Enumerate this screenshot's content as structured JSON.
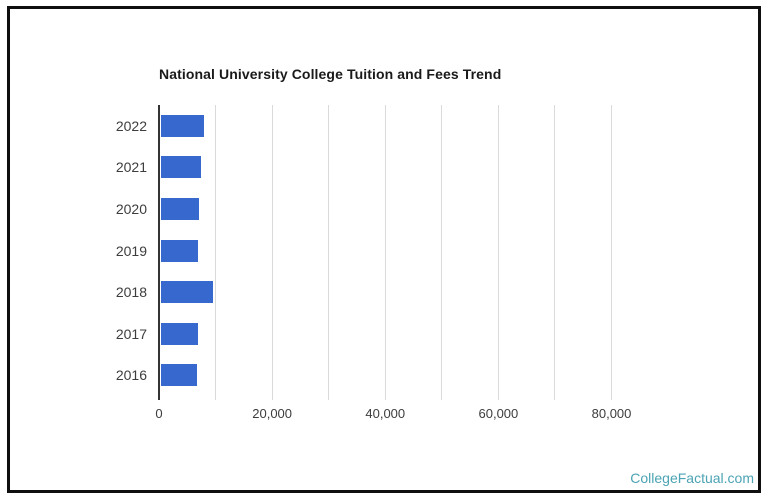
{
  "page": {
    "background": "#ffffff",
    "card_border_color": "#0f0f0f"
  },
  "chart_data": {
    "type": "bar",
    "orientation": "horizontal",
    "title": "National University College Tuition and Fees Trend",
    "categories": [
      "2022",
      "2021",
      "2020",
      "2019",
      "2018",
      "2017",
      "2016"
    ],
    "values": [
      7650,
      7110,
      6650,
      6530,
      9170,
      6590,
      6300
    ],
    "xlabel": "",
    "ylabel": "",
    "xlim": [
      0,
      90000
    ],
    "x_tick_values": [
      0,
      20000,
      40000,
      60000,
      80000
    ],
    "x_tick_labels": [
      "0",
      "20,000",
      "40,000",
      "60,000",
      "80,000"
    ],
    "gridline_interval": 10000,
    "gridline_max": 80000,
    "grid": true,
    "legend": "none",
    "bar_color": "#3668cd",
    "axis_color": "#333333",
    "gridline_color": "#dadada",
    "label_color": "#3d3d3d",
    "title_color": "#1a1a1a"
  },
  "footer": {
    "watermark": "CollegeFactual.com",
    "watermark_color": "#4ba3b4"
  }
}
